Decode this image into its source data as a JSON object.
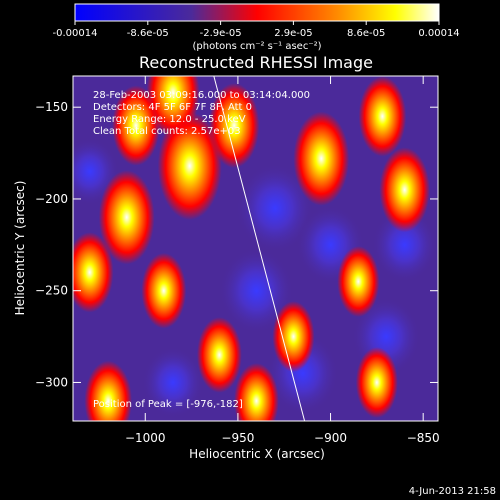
{
  "colorbar": {
    "ticks": [
      "-0.00014",
      "-8.6e-05",
      "-2.9e-05",
      "2.9e-05",
      "8.6e-05",
      "0.00014"
    ],
    "units_label": "(photons cm⁻² s⁻¹ asec⁻²)",
    "colors": [
      "#0000ff",
      "#4b2a9a",
      "#ff0000",
      "#ff8a00",
      "#ffff00",
      "#ffffff"
    ]
  },
  "chart_data": {
    "type": "heatmap",
    "title": "Reconstructed RHESSI Image",
    "xlabel": "Heliocentric X (arcsec)",
    "ylabel": "Heliocentric Y (arcsec)",
    "xlim": [
      -1039,
      -842
    ],
    "ylim": [
      -321,
      -133
    ],
    "x_ticks": [
      -1000,
      -950,
      -900,
      -850
    ],
    "y_ticks": [
      -150,
      -200,
      -250,
      -300
    ],
    "x_tick_labels": [
      "−1000",
      "−950",
      "−900",
      "−850"
    ],
    "y_tick_labels": [
      "−150",
      "−200",
      "−250",
      "−300"
    ],
    "info_lines": [
      "28-Feb-2003 03:09:16.000 to 03:14:04.000",
      "Detectors: 4F 5F 6F 7F 8F, Att 0",
      "Energy Range: 12.0 - 25.0 keV",
      "Clean     Total counts: 2.57e+03"
    ],
    "peak_label": "Position of Peak = [-976,-182]",
    "peak_position": [
      -976,
      -182
    ],
    "limb_line": [
      [
        -963,
        -133
      ],
      [
        -914,
        -321
      ]
    ],
    "hot_spots": [
      {
        "x": -976,
        "y": -182,
        "value": 0.00014
      },
      {
        "x": -985,
        "y": -142,
        "value": 0.0001
      },
      {
        "x": -1010,
        "y": -210,
        "value": 0.00011
      },
      {
        "x": -1005,
        "y": -160,
        "value": 8e-05
      },
      {
        "x": -952,
        "y": -160,
        "value": 9e-05
      },
      {
        "x": -905,
        "y": -178,
        "value": 0.00011
      },
      {
        "x": -860,
        "y": -195,
        "value": 9e-05
      },
      {
        "x": -872,
        "y": -155,
        "value": 8e-05
      },
      {
        "x": -990,
        "y": -250,
        "value": 7e-05
      },
      {
        "x": -1030,
        "y": -240,
        "value": 8e-05
      },
      {
        "x": -960,
        "y": -285,
        "value": 7e-05
      },
      {
        "x": -920,
        "y": -275,
        "value": 6e-05
      },
      {
        "x": -885,
        "y": -245,
        "value": 6e-05
      },
      {
        "x": -1020,
        "y": -310,
        "value": 8e-05
      },
      {
        "x": -940,
        "y": -310,
        "value": 7e-05
      },
      {
        "x": -875,
        "y": -300,
        "value": 6e-05
      }
    ],
    "cold_spots": [
      {
        "x": -930,
        "y": -205,
        "value": -0.00012
      },
      {
        "x": -940,
        "y": -250,
        "value": -0.00011
      },
      {
        "x": -900,
        "y": -225,
        "value": -9e-05
      },
      {
        "x": -915,
        "y": -295,
        "value": -0.0001
      },
      {
        "x": -870,
        "y": -275,
        "value": -9e-05
      },
      {
        "x": -985,
        "y": -300,
        "value": -7e-05
      },
      {
        "x": -1030,
        "y": -185,
        "value": -6e-05
      },
      {
        "x": -860,
        "y": -225,
        "value": -8e-05
      }
    ]
  },
  "footer": {
    "date": "4-Jun-2013 21:58"
  }
}
